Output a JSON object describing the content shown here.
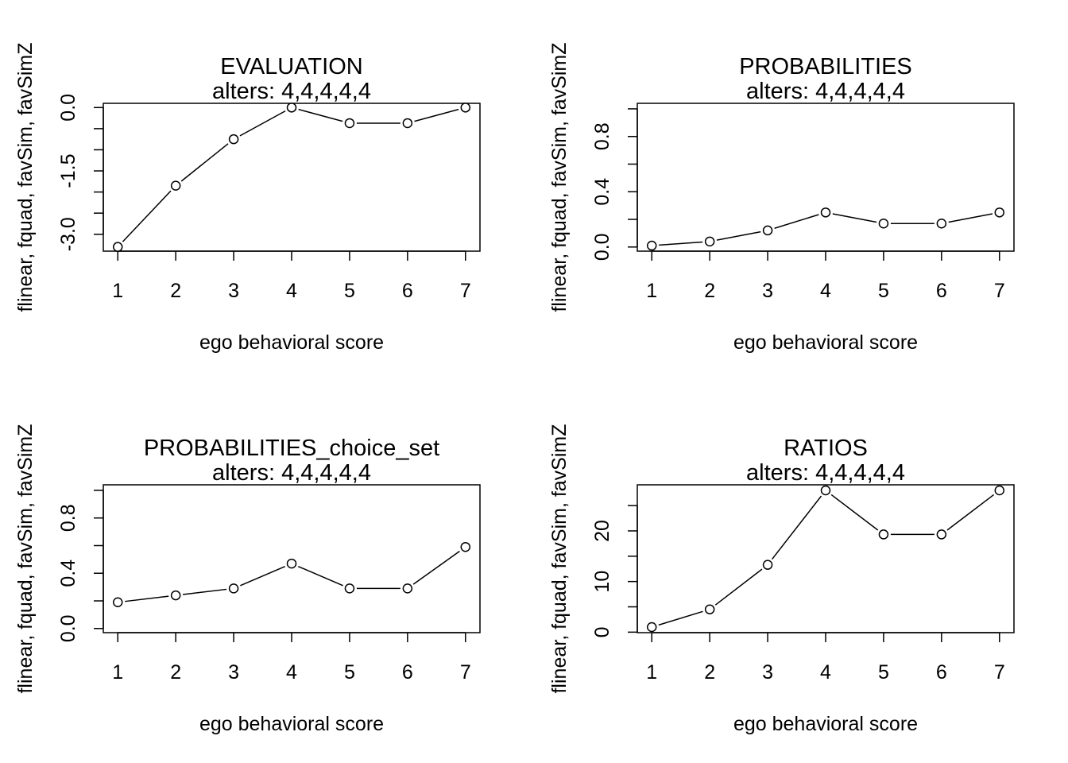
{
  "chart_data": [
    {
      "type": "line",
      "title": "EVALUATION",
      "subtitle": "alters: 4,4,4,4,4",
      "xlabel": "ego behavioral score",
      "ylabel": "flinear, fquad, favSim, favSimZ",
      "x": [
        1,
        2,
        3,
        4,
        5,
        6,
        7
      ],
      "y": [
        -3.3,
        -1.85,
        -0.75,
        0.0,
        -0.37,
        -0.37,
        0.0
      ],
      "xlim": [
        0.75,
        7.25
      ],
      "ylim": [
        -3.4,
        0.1
      ],
      "xticks": [
        1,
        2,
        3,
        4,
        5,
        6,
        7
      ],
      "yticks": [
        -3.0,
        -2.5,
        -2.0,
        -1.5,
        -1.0,
        -0.5,
        0.0
      ],
      "ytick_labels": [
        "-3.0",
        "",
        "",
        "-1.5",
        "",
        "",
        "0.0"
      ],
      "grid": false,
      "legend": false
    },
    {
      "type": "line",
      "title": "PROBABILITIES",
      "subtitle": "alters: 4,4,4,4,4",
      "xlabel": "ego behavioral score",
      "ylabel": "flinear, fquad, favSim, favSimZ",
      "x": [
        1,
        2,
        3,
        4,
        5,
        6,
        7
      ],
      "y": [
        0.01,
        0.04,
        0.12,
        0.25,
        0.17,
        0.17,
        0.25
      ],
      "xlim": [
        0.75,
        7.25
      ],
      "ylim": [
        -0.03,
        1.04
      ],
      "xticks": [
        1,
        2,
        3,
        4,
        5,
        6,
        7
      ],
      "yticks": [
        0.0,
        0.2,
        0.4,
        0.6,
        0.8,
        1.0
      ],
      "ytick_labels": [
        "0.0",
        "",
        "0.4",
        "",
        "0.8",
        ""
      ],
      "grid": false,
      "legend": false
    },
    {
      "type": "line",
      "title": "PROBABILITIES_choice_set",
      "subtitle": "alters: 4,4,4,4,4",
      "xlabel": "ego behavioral score",
      "ylabel": "flinear, fquad, favSim, favSimZ",
      "x": [
        1,
        2,
        3,
        4,
        5,
        6,
        7
      ],
      "y": [
        0.19,
        0.24,
        0.29,
        0.47,
        0.29,
        0.29,
        0.59
      ],
      "xlim": [
        0.75,
        7.25
      ],
      "ylim": [
        -0.03,
        1.04
      ],
      "xticks": [
        1,
        2,
        3,
        4,
        5,
        6,
        7
      ],
      "yticks": [
        0.0,
        0.2,
        0.4,
        0.6,
        0.8,
        1.0
      ],
      "ytick_labels": [
        "0.0",
        "",
        "0.4",
        "",
        "0.8",
        ""
      ],
      "grid": false,
      "legend": false
    },
    {
      "type": "line",
      "title": "RATIOS",
      "subtitle": "alters: 4,4,4,4,4",
      "xlabel": "ego behavioral score",
      "ylabel": "flinear, fquad, favSim, favSimZ",
      "x": [
        1,
        2,
        3,
        4,
        5,
        6,
        7
      ],
      "y": [
        1.0,
        4.5,
        13.3,
        28.0,
        19.3,
        19.3,
        28.0
      ],
      "xlim": [
        0.75,
        7.25
      ],
      "ylim": [
        -0.1,
        29.1
      ],
      "xticks": [
        1,
        2,
        3,
        4,
        5,
        6,
        7
      ],
      "yticks": [
        0,
        5,
        10,
        15,
        20,
        25
      ],
      "ytick_labels": [
        "0",
        "",
        "10",
        "",
        "20",
        ""
      ],
      "grid": false,
      "legend": false
    }
  ]
}
